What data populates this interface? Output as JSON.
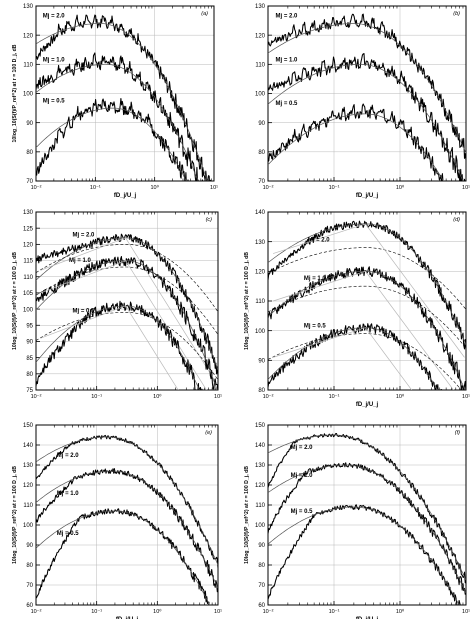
{
  "figure": {
    "background": "#ffffff",
    "ink": "#000000",
    "grid_color": "#b9b9b9",
    "model_color": "#555555"
  },
  "chart_data": [
    {
      "type": "line",
      "panel_label": "(a)",
      "xlabel": "fD_j/U_j",
      "ylabel": "10log_10(S(f)/P_ref^2) at r = 100 D_j, dB",
      "x_scale": "log",
      "xlim": [
        0.01,
        10
      ],
      "x_ticks": [
        "10⁻²",
        "10⁻¹",
        "10⁰",
        "10¹"
      ],
      "ylim": [
        70,
        130
      ],
      "y_ticks": [
        70,
        80,
        90,
        100,
        110,
        120,
        130
      ],
      "grid": true,
      "legend": "none",
      "series": [
        {
          "name": "M_j = 2.0",
          "label": "Mj = 2.0",
          "label_pos": [
            0.013,
            126
          ],
          "peak_x": 0.12,
          "peak_y": 124,
          "left_slope": 6,
          "right_slope": 30,
          "data_start_y": 112,
          "data_end_x": 10,
          "data_noise": 1.5,
          "peaky": true
        },
        {
          "name": "M_j = 1.0",
          "label": "Mj = 1.0",
          "label_pos": [
            0.013,
            111
          ],
          "peak_x": 0.15,
          "peak_y": 110,
          "left_slope": 7,
          "right_slope": 30,
          "data_start_y": 103,
          "data_end_x": 10,
          "data_noise": 1.8,
          "peaky": true
        },
        {
          "name": "M_j = 0.5",
          "label": "Mj = 0.5",
          "label_pos": [
            0.013,
            97
          ],
          "peak_x": 0.2,
          "peak_y": 95,
          "left_slope": 8,
          "right_slope": 30,
          "data_start_y": 72,
          "data_end_x": 10,
          "data_noise": 1.8,
          "peaky": true
        }
      ]
    },
    {
      "type": "line",
      "panel_label": "(b)",
      "xlabel": "fD_j/U_j",
      "ylabel": "",
      "x_scale": "log",
      "xlim": [
        0.01,
        10
      ],
      "x_ticks": [
        "10⁻²",
        "10⁻¹",
        "10⁰",
        "10¹"
      ],
      "ylim": [
        70,
        130
      ],
      "y_ticks": [
        70,
        80,
        90,
        100,
        110,
        120,
        130
      ],
      "grid": true,
      "legend": "none",
      "series": [
        {
          "name": "M_j = 2.0",
          "label": "Mj = 2.0",
          "label_pos": [
            0.013,
            126
          ],
          "peak_x": 0.2,
          "peak_y": 124,
          "left_slope": 6,
          "right_slope": 28,
          "data_start_y": 117,
          "data_end_x": 10,
          "data_noise": 1.4,
          "peaky": true
        },
        {
          "name": "M_j = 1.0",
          "label": "Mj = 1.0",
          "label_pos": [
            0.013,
            111
          ],
          "peak_x": 0.25,
          "peak_y": 110,
          "left_slope": 7,
          "right_slope": 30,
          "data_start_y": 101,
          "data_end_x": 10,
          "data_noise": 1.8,
          "peaky": true
        },
        {
          "name": "M_j = 0.5",
          "label": "Mj = 0.5",
          "label_pos": [
            0.013,
            96
          ],
          "peak_x": 0.3,
          "peak_y": 93,
          "left_slope": 8,
          "right_slope": 30,
          "data_start_y": 77,
          "data_end_x": 10,
          "data_noise": 1.8,
          "peaky": true
        }
      ]
    },
    {
      "type": "line",
      "panel_label": "(c)",
      "xlabel": "",
      "ylabel": "10log_10(S(f)/P_ref^2) at r = 100 D_j, dB",
      "x_scale": "log",
      "xlim": [
        0.01,
        10
      ],
      "x_ticks": [
        "10⁻²",
        "10⁻¹",
        "10⁰",
        "10¹"
      ],
      "ylim": [
        75,
        130
      ],
      "y_ticks": [
        75,
        80,
        85,
        90,
        95,
        100,
        105,
        110,
        115,
        120,
        125,
        130
      ],
      "grid": true,
      "legend": "none",
      "series": [
        {
          "name": "M_j = 2.0",
          "label": "Mj = 2.0",
          "label_pos": [
            0.04,
            122.5
          ],
          "peak_x": 0.3,
          "peak_y": 122,
          "left_slope": 6,
          "right_slope": 32,
          "data_start_y": 115,
          "data_end_x": 10,
          "data_noise": 1.2,
          "peaky": false,
          "dashed_peak": 120
        },
        {
          "name": "M_j = 1.0",
          "label": "Mj = 1.0",
          "label_pos": [
            0.035,
            114.5
          ],
          "peak_x": 0.3,
          "peak_y": 115,
          "left_slope": 7,
          "right_slope": 32,
          "data_start_y": 102,
          "data_end_x": 10,
          "data_noise": 1.6,
          "peaky": false,
          "dashed_peak": 113
        },
        {
          "name": "M_j = 0.5",
          "label": "Mj = 0.5",
          "label_pos": [
            0.04,
            99
          ],
          "peak_x": 0.3,
          "peak_y": 101,
          "left_slope": 8,
          "right_slope": 32,
          "data_start_y": 77,
          "data_end_x": 10,
          "data_noise": 1.6,
          "peaky": false,
          "dashed_peak": 99
        }
      ]
    },
    {
      "type": "line",
      "panel_label": "(d)",
      "xlabel": "fD_j/U_j",
      "ylabel": "10log_10(S(f)/P_ref^2) at r = 100 D_j, dB",
      "x_scale": "log",
      "xlim": [
        0.01,
        10
      ],
      "x_ticks": [
        "10⁻²",
        "10⁻¹",
        "10⁰",
        "10¹"
      ],
      "ylim": [
        80,
        140
      ],
      "y_ticks": [
        80,
        90,
        100,
        110,
        120,
        130,
        140
      ],
      "grid": true,
      "legend": "none",
      "series": [
        {
          "name": "M_j = 2.0",
          "label": "Mj = 2.0",
          "label_pos": [
            0.04,
            130
          ],
          "peak_x": 0.3,
          "peak_y": 136,
          "left_slope": 6,
          "right_slope": 32,
          "data_start_y": 118,
          "data_end_x": 10,
          "data_noise": 1.2,
          "peaky": false,
          "dashed_peak": 128
        },
        {
          "name": "M_j = 1.0",
          "label": "Mj = 1.0",
          "label_pos": [
            0.035,
            117
          ],
          "peak_x": 0.3,
          "peak_y": 120,
          "left_slope": 7,
          "right_slope": 32,
          "data_start_y": 104,
          "data_end_x": 10,
          "data_noise": 1.6,
          "peaky": false,
          "dashed_peak": 115
        },
        {
          "name": "M_j = 0.5",
          "label": "Mj = 0.5",
          "label_pos": [
            0.035,
            101
          ],
          "peak_x": 0.3,
          "peak_y": 101,
          "left_slope": 8,
          "right_slope": 32,
          "data_start_y": 82,
          "data_end_x": 10,
          "data_noise": 1.6,
          "peaky": false,
          "dashed_peak": 99
        }
      ]
    },
    {
      "type": "line",
      "panel_label": "(e)",
      "xlabel": "fD_j/U_j",
      "ylabel": "10log_10(S(f)/P_ref^2) at r = 100 D_j, dB",
      "x_scale": "log",
      "xlim": [
        0.01,
        10
      ],
      "x_ticks": [
        "10⁻²",
        "10⁻¹",
        "10⁰",
        "10¹"
      ],
      "ylim": [
        60,
        150
      ],
      "y_ticks": [
        60,
        70,
        80,
        90,
        100,
        110,
        120,
        130,
        140,
        150
      ],
      "grid": true,
      "legend": "none",
      "series": [
        {
          "name": "M_j = 2.0",
          "label": "Mj = 2.0",
          "label_pos": [
            0.022,
            134
          ],
          "peak_x": 0.15,
          "peak_y": 144,
          "left_slope": 9,
          "right_slope": 35,
          "data_start_y": 122,
          "data_end_x": 10,
          "data_noise": 0.9,
          "peaky": false
        },
        {
          "name": "M_j = 1.0",
          "label": "Mj = 1.0",
          "label_pos": [
            0.022,
            115
          ],
          "peak_x": 0.18,
          "peak_y": 127,
          "left_slope": 10,
          "right_slope": 35,
          "data_start_y": 101,
          "data_end_x": 10,
          "data_noise": 1.3,
          "peaky": false
        },
        {
          "name": "M_j = 0.5",
          "label": "Mj = 0.5",
          "label_pos": [
            0.022,
            95
          ],
          "peak_x": 0.2,
          "peak_y": 107,
          "left_slope": 11,
          "right_slope": 35,
          "data_start_y": 62,
          "data_end_x": 10,
          "data_noise": 1.3,
          "peaky": false
        }
      ]
    },
    {
      "type": "line",
      "panel_label": "(f)",
      "xlabel": "fD_j/U_j",
      "ylabel": "10log_10(S(f)/P_ref^2) at r = 100 D_j, dB",
      "x_scale": "log",
      "xlim": [
        0.01,
        10
      ],
      "x_ticks": [
        "10⁻²",
        "10⁻¹",
        "10⁰",
        "10¹"
      ],
      "ylim": [
        60,
        150
      ],
      "y_ticks": [
        60,
        70,
        80,
        90,
        100,
        110,
        120,
        130,
        140,
        150
      ],
      "grid": true,
      "legend": "none",
      "series": [
        {
          "name": "M_j = 2.0",
          "label": "Mj = 2.0",
          "label_pos": [
            0.022,
            138
          ],
          "peak_x": 0.1,
          "peak_y": 145,
          "left_slope": 9,
          "right_slope": 33,
          "data_start_y": 118,
          "data_end_x": 10,
          "data_noise": 0.9,
          "peaky": false
        },
        {
          "name": "M_j = 1.0",
          "label": "Mj = 1.0",
          "label_pos": [
            0.022,
            124
          ],
          "peak_x": 0.15,
          "peak_y": 130,
          "left_slope": 10,
          "right_slope": 35,
          "data_start_y": 96,
          "data_end_x": 10,
          "data_noise": 1.2,
          "peaky": false
        },
        {
          "name": "M_j = 0.5",
          "label": "Mj = 0.5",
          "label_pos": [
            0.022,
            106
          ],
          "peak_x": 0.2,
          "peak_y": 109,
          "left_slope": 11,
          "right_slope": 35,
          "data_start_y": 62,
          "data_end_x": 10,
          "data_noise": 1.2,
          "peaky": false
        }
      ]
    }
  ]
}
